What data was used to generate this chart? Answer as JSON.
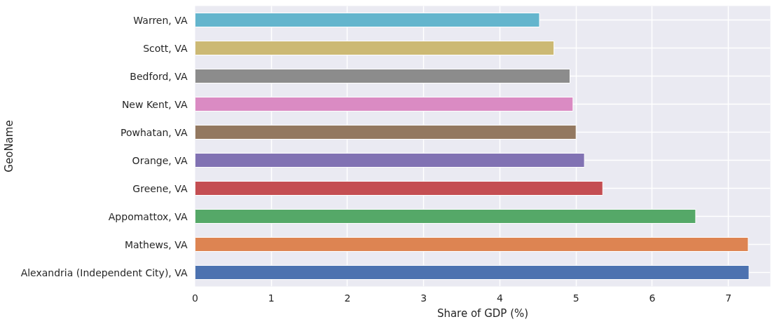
{
  "chart_data": {
    "type": "bar",
    "orientation": "horizontal",
    "xlabel": "Share of GDP (%)",
    "ylabel": "GeoName",
    "categories": [
      "Warren, VA",
      "Scott, VA",
      "Bedford, VA",
      "New Kent, VA",
      "Powhatan, VA",
      "Orange, VA",
      "Greene, VA",
      "Appomattox, VA",
      "Mathews, VA",
      "Alexandria (Independent City), VA"
    ],
    "values": [
      4.52,
      4.71,
      4.92,
      4.96,
      5.0,
      5.11,
      5.35,
      6.57,
      7.26,
      7.27
    ],
    "colors": [
      "#64b5cd",
      "#ccb974",
      "#8c8c8c",
      "#da8bc3",
      "#937860",
      "#8172b3",
      "#c44e52",
      "#55a868",
      "#dd8452",
      "#4c72b0"
    ],
    "xlim": [
      0,
      7.55
    ],
    "xticks": [
      0,
      1,
      2,
      3,
      4,
      5,
      6,
      7
    ],
    "grid": true
  }
}
